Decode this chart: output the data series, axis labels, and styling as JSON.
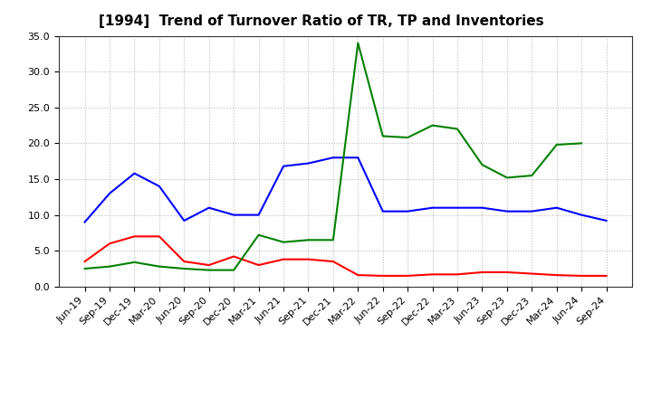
{
  "title": "[1994]  Trend of Turnover Ratio of TR, TP and Inventories",
  "x_labels": [
    "Jun-19",
    "Sep-19",
    "Dec-19",
    "Mar-20",
    "Jun-20",
    "Sep-20",
    "Dec-20",
    "Mar-21",
    "Jun-21",
    "Sep-21",
    "Dec-21",
    "Mar-22",
    "Jun-22",
    "Sep-22",
    "Dec-22",
    "Mar-23",
    "Jun-23",
    "Sep-23",
    "Dec-23",
    "Mar-24",
    "Jun-24",
    "Sep-24"
  ],
  "trade_receivables": [
    3.5,
    6.0,
    7.0,
    7.0,
    3.5,
    3.0,
    4.2,
    3.0,
    3.8,
    3.8,
    3.5,
    1.6,
    1.5,
    1.5,
    1.7,
    1.7,
    2.0,
    2.0,
    1.8,
    1.6,
    1.5,
    1.5
  ],
  "trade_payables": [
    9.0,
    13.0,
    15.8,
    14.0,
    9.2,
    11.0,
    10.0,
    10.0,
    16.8,
    17.2,
    18.0,
    18.0,
    10.5,
    10.5,
    11.0,
    11.0,
    11.0,
    10.5,
    10.5,
    11.0,
    10.0,
    9.2
  ],
  "inventories": [
    2.5,
    2.8,
    3.4,
    2.8,
    2.5,
    2.3,
    2.3,
    7.2,
    6.2,
    6.5,
    6.5,
    34.0,
    21.0,
    20.8,
    22.5,
    22.0,
    17.0,
    15.2,
    15.5,
    19.8,
    20.0,
    null
  ],
  "ylim": [
    0.0,
    35.0
  ],
  "yticks": [
    0.0,
    5.0,
    10.0,
    15.0,
    20.0,
    25.0,
    30.0,
    35.0
  ],
  "color_tr": "#ff0000",
  "color_tp": "#0000ff",
  "color_inv": "#008000",
  "background_color": "#ffffff",
  "grid_color": "#aaaaaa",
  "line_width": 1.5,
  "title_fontsize": 11,
  "tick_fontsize": 8,
  "legend_fontsize": 9
}
